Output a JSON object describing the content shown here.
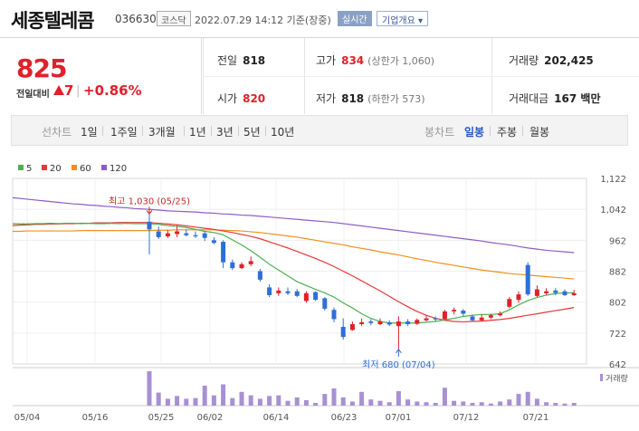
{
  "header": {
    "name": "세종텔레콤",
    "code": "036630",
    "market": "코스닥",
    "datetime": "2022.07.29 14:12 기준(장중)",
    "realtime": "실시간",
    "company_info": "기업개요 ▾"
  },
  "quote": {
    "price": "825",
    "vs_label": "전일대비",
    "change": "7",
    "sep": "|",
    "change_pct": "+0.86%"
  },
  "stats": {
    "prev_label": "전일",
    "prev": "818",
    "high_label": "고가",
    "high": "834",
    "upper_limit": "(상한가 1,060)",
    "volume_label": "거래량",
    "volume": "202,425",
    "open_label": "시가",
    "open": "820",
    "low_label": "저가",
    "low": "818",
    "lower_limit": "(하한가 573)",
    "amount_label": "거래대금",
    "amount": "167 백만"
  },
  "tabs": {
    "line_label": "선차트",
    "line_items": [
      "1일",
      "1주일",
      "3개월",
      "1년",
      "3년",
      "5년",
      "10년"
    ],
    "candle_label": "봉차트",
    "candle_items": [
      "일봉",
      "주봉",
      "월봉"
    ],
    "selected": "일봉"
  },
  "colors": {
    "up": "#e0202a",
    "down": "#2f6ed8",
    "ma5": "#4caf50",
    "ma20": "#e53935",
    "ma60": "#f0901e",
    "ma120": "#8e5cc7",
    "volume": "#a890d3"
  },
  "chart_data": {
    "type": "candlestick",
    "legend": [
      {
        "name": "5",
        "color": "#4caf50"
      },
      {
        "name": "20",
        "color": "#e53935"
      },
      {
        "name": "60",
        "color": "#f0901e"
      },
      {
        "name": "120",
        "color": "#8e5cc7"
      }
    ],
    "y_ticks": [
      "1,122",
      "1,042",
      "962",
      "882",
      "802",
      "722",
      "642"
    ],
    "y_tick_values": [
      1122,
      1042,
      962,
      882,
      802,
      722,
      642
    ],
    "ylim": [
      642,
      1122
    ],
    "x_labels": [
      "05/04",
      "05/16",
      "05/25",
      "06/02",
      "06/14",
      "06/23",
      "07/01",
      "07/12",
      "07/21"
    ],
    "annotations": {
      "high": "최고 1,030 (05/25)",
      "low": "최저 680 (07/04)"
    },
    "volume_label": "거래량",
    "candles": [
      {
        "x": "05/25",
        "o": 1010,
        "c": 990,
        "h": 1030,
        "l": 925
      },
      {
        "x": "05/26",
        "o": 985,
        "c": 970,
        "h": 998,
        "l": 965
      },
      {
        "x": "05/27",
        "o": 972,
        "c": 980,
        "h": 988,
        "l": 968
      },
      {
        "x": "05/30",
        "o": 978,
        "c": 985,
        "h": 1000,
        "l": 970
      },
      {
        "x": "05/31",
        "o": 980,
        "c": 975,
        "h": 990,
        "l": 972
      },
      {
        "x": "06/01",
        "o": 975,
        "c": 972,
        "h": 985,
        "l": 968
      },
      {
        "x": "06/02",
        "o": 980,
        "c": 968,
        "h": 985,
        "l": 960
      },
      {
        "x": "06/03",
        "o": 962,
        "c": 955,
        "h": 970,
        "l": 952
      },
      {
        "x": "06/07",
        "o": 958,
        "c": 905,
        "h": 962,
        "l": 890
      },
      {
        "x": "06/08",
        "o": 905,
        "c": 890,
        "h": 912,
        "l": 885
      },
      {
        "x": "06/09",
        "o": 890,
        "c": 900,
        "h": 905,
        "l": 888
      },
      {
        "x": "06/10",
        "o": 900,
        "c": 908,
        "h": 920,
        "l": 895
      },
      {
        "x": "06/13",
        "o": 882,
        "c": 860,
        "h": 888,
        "l": 855
      },
      {
        "x": "06/14",
        "o": 840,
        "c": 820,
        "h": 848,
        "l": 815
      },
      {
        "x": "06/15",
        "o": 825,
        "c": 832,
        "h": 840,
        "l": 818
      },
      {
        "x": "06/16",
        "o": 830,
        "c": 825,
        "h": 840,
        "l": 820
      },
      {
        "x": "06/17",
        "o": 830,
        "c": 818,
        "h": 836,
        "l": 815
      },
      {
        "x": "06/20",
        "o": 805,
        "c": 825,
        "h": 830,
        "l": 800
      },
      {
        "x": "06/21",
        "o": 828,
        "c": 808,
        "h": 830,
        "l": 805
      },
      {
        "x": "06/22",
        "o": 812,
        "c": 785,
        "h": 815,
        "l": 780
      },
      {
        "x": "06/23",
        "o": 782,
        "c": 758,
        "h": 788,
        "l": 750
      },
      {
        "x": "06/24",
        "o": 738,
        "c": 712,
        "h": 760,
        "l": 705
      },
      {
        "x": "06/27",
        "o": 730,
        "c": 745,
        "h": 752,
        "l": 728
      },
      {
        "x": "06/28",
        "o": 745,
        "c": 750,
        "h": 760,
        "l": 740
      },
      {
        "x": "06/29",
        "o": 752,
        "c": 748,
        "h": 758,
        "l": 742
      },
      {
        "x": "06/30",
        "o": 745,
        "c": 752,
        "h": 760,
        "l": 742
      },
      {
        "x": "07/01",
        "o": 750,
        "c": 744,
        "h": 755,
        "l": 740
      },
      {
        "x": "07/04",
        "o": 740,
        "c": 752,
        "h": 765,
        "l": 680
      },
      {
        "x": "07/05",
        "o": 752,
        "c": 745,
        "h": 758,
        "l": 740
      },
      {
        "x": "07/06",
        "o": 746,
        "c": 756,
        "h": 760,
        "l": 743
      },
      {
        "x": "07/07",
        "o": 755,
        "c": 760,
        "h": 768,
        "l": 752
      },
      {
        "x": "07/08",
        "o": 760,
        "c": 758,
        "h": 765,
        "l": 752
      },
      {
        "x": "07/11",
        "o": 758,
        "c": 778,
        "h": 782,
        "l": 755
      },
      {
        "x": "07/12",
        "o": 778,
        "c": 782,
        "h": 788,
        "l": 770
      },
      {
        "x": "07/13",
        "o": 780,
        "c": 772,
        "h": 784,
        "l": 766
      },
      {
        "x": "07/14",
        "o": 765,
        "c": 755,
        "h": 770,
        "l": 752
      },
      {
        "x": "07/15",
        "o": 755,
        "c": 762,
        "h": 770,
        "l": 752
      },
      {
        "x": "07/18",
        "o": 762,
        "c": 768,
        "h": 772,
        "l": 758
      },
      {
        "x": "07/19",
        "o": 768,
        "c": 772,
        "h": 778,
        "l": 765
      },
      {
        "x": "07/20",
        "o": 790,
        "c": 810,
        "h": 815,
        "l": 786
      },
      {
        "x": "07/21",
        "o": 808,
        "c": 822,
        "h": 830,
        "l": 800
      },
      {
        "x": "07/22",
        "o": 898,
        "c": 822,
        "h": 905,
        "l": 818
      },
      {
        "x": "07/25",
        "o": 818,
        "c": 835,
        "h": 845,
        "l": 815
      },
      {
        "x": "07/26",
        "o": 825,
        "c": 830,
        "h": 838,
        "l": 820
      },
      {
        "x": "07/27",
        "o": 832,
        "c": 826,
        "h": 838,
        "l": 820
      },
      {
        "x": "07/28",
        "o": 830,
        "c": 820,
        "h": 835,
        "l": 818
      },
      {
        "x": "07/29",
        "o": 820,
        "c": 825,
        "h": 834,
        "l": 818
      }
    ],
    "ma5": [
      1005,
      1003,
      1000,
      998,
      995,
      990,
      985,
      982,
      976,
      963,
      950,
      935,
      918,
      900,
      885,
      870,
      855,
      845,
      835,
      826,
      815,
      800,
      787,
      772,
      760,
      752,
      748,
      748,
      748,
      748,
      750,
      752,
      756,
      760,
      765,
      768,
      770,
      770,
      772,
      782,
      795,
      806,
      814,
      820,
      824,
      826,
      826
    ],
    "ma20": [
      1008,
      1006,
      1004,
      1002,
      999,
      996,
      993,
      990,
      986,
      982,
      977,
      972,
      966,
      958,
      950,
      942,
      933,
      924,
      915,
      905,
      894,
      882,
      870,
      857,
      844,
      831,
      817,
      803,
      790,
      778,
      768,
      760,
      755,
      752,
      751,
      752,
      753,
      755,
      757,
      760,
      764,
      768,
      772,
      776,
      780,
      784,
      788
    ],
    "ma60": [
      987,
      988,
      988,
      989,
      989,
      989,
      989,
      989,
      988,
      987,
      986,
      984,
      982,
      979,
      976,
      973,
      970,
      966,
      962,
      958,
      954,
      950,
      945,
      941,
      937,
      932,
      928,
      924,
      919,
      914,
      910,
      905,
      901,
      897,
      893,
      889,
      885,
      882,
      879,
      876,
      874,
      872,
      870,
      868,
      866,
      864,
      862
    ],
    "ma120": [
      1042,
      1040,
      1038,
      1037,
      1036,
      1035,
      1033,
      1032,
      1030,
      1029,
      1027,
      1026,
      1024,
      1022,
      1020,
      1018,
      1016,
      1014,
      1012,
      1010,
      1008,
      1005,
      1002,
      999,
      996,
      993,
      990,
      987,
      984,
      981,
      978,
      975,
      972,
      969,
      966,
      963,
      960,
      956,
      953,
      950,
      946,
      942,
      939,
      936,
      934,
      932,
      930
    ],
    "pre_mas": {
      "ma5": [
        1005,
        1004,
        1004,
        1005,
        1005,
        1006,
        1005,
        1006,
        1006,
        1005,
        1006,
        1005,
        1005,
        1006,
        1005,
        1006,
        1005,
        1005
      ],
      "ma20": [
        1000,
        1001,
        1002,
        1003,
        1003,
        1004,
        1004,
        1005,
        1005,
        1006,
        1006,
        1007,
        1007,
        1007,
        1008,
        1008,
        1008,
        1008
      ],
      "ma60": [
        985,
        985,
        986,
        986,
        986,
        986,
        986,
        986,
        986,
        987,
        987,
        987,
        987,
        987,
        987,
        987,
        987,
        987
      ],
      "ma120": [
        1072,
        1070,
        1068,
        1066,
        1064,
        1062,
        1060,
        1058,
        1056,
        1055,
        1053,
        1052,
        1050,
        1049,
        1047,
        1046,
        1044,
        1043
      ]
    },
    "pre_flat_price": 1005,
    "volumes": [
      100,
      38,
      20,
      28,
      20,
      22,
      58,
      30,
      62,
      22,
      40,
      30,
      20,
      28,
      30,
      14,
      24,
      16,
      8,
      34,
      50,
      24,
      12,
      40,
      18,
      14,
      10,
      42,
      18,
      12,
      10,
      8,
      52,
      14,
      12,
      8,
      10,
      6,
      12,
      18,
      34,
      40,
      20,
      10,
      8,
      6,
      8
    ]
  }
}
